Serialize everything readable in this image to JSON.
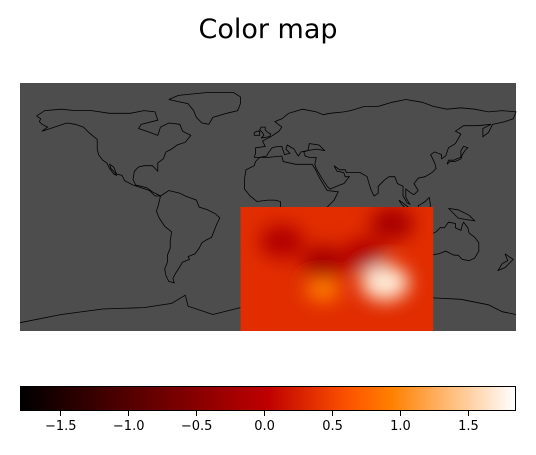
{
  "title": "Color map",
  "map": {
    "background_color": "#4d4d4d",
    "coastline_color": "#000000",
    "projection": "equirectangular",
    "lon_range": [
      -180,
      180
    ],
    "lat_range": [
      -90,
      90
    ]
  },
  "overlay": {
    "lon_range": [
      -20,
      120
    ],
    "lat_range": [
      -90,
      0
    ],
    "hotspots": [
      {
        "lon": 40,
        "lat": -60,
        "value": 0.9
      },
      {
        "lon": 85,
        "lat": -55,
        "value": 1.7
      }
    ],
    "coldspots": [
      {
        "lon": 10,
        "lat": -25,
        "value": -0.1
      },
      {
        "lon": 40,
        "lat": -40,
        "value": -0.2
      },
      {
        "lon": 70,
        "lat": -35,
        "value": -0.1
      },
      {
        "lon": 90,
        "lat": -12,
        "value": -0.2
      }
    ]
  },
  "colorbar": {
    "colormap": "gist_heat",
    "vmin": -1.8,
    "vmax": 1.85,
    "ticks": [
      {
        "value": -1.5,
        "label": "−1.5"
      },
      {
        "value": -1.0,
        "label": "−1.0"
      },
      {
        "value": -0.5,
        "label": "−0.5"
      },
      {
        "value": 0.0,
        "label": "0.0"
      },
      {
        "value": 0.5,
        "label": "0.5"
      },
      {
        "value": 1.0,
        "label": "1.0"
      },
      {
        "value": 1.5,
        "label": "1.5"
      }
    ]
  }
}
